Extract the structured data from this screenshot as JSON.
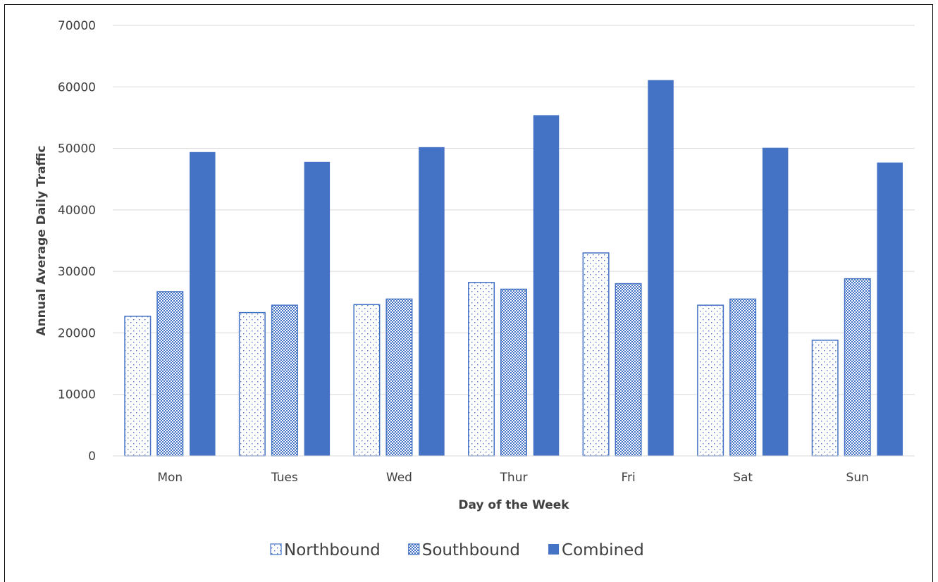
{
  "chart_data": {
    "type": "bar",
    "categories": [
      "Mon",
      "Tues",
      "Wed",
      "Thur",
      "Fri",
      "Sat",
      "Sun"
    ],
    "series": [
      {
        "name": "Northbound",
        "values": [
          22700,
          23300,
          24600,
          28200,
          33000,
          24500,
          18800
        ],
        "color": "#4472C4",
        "fill": "dots"
      },
      {
        "name": "Southbound",
        "values": [
          26700,
          24500,
          25500,
          27100,
          28000,
          25500,
          28800
        ],
        "color": "#4472C4",
        "fill": "checker"
      },
      {
        "name": "Combined",
        "values": [
          49400,
          47800,
          50200,
          55400,
          61100,
          50100,
          47700
        ],
        "color": "#4472C4",
        "fill": "solid"
      }
    ],
    "xlabel": "Day of the Week",
    "ylabel": "Annual Average Daily Traffic",
    "ylim": [
      0,
      70000
    ],
    "yticks": [
      "0",
      "10000",
      "20000",
      "30000",
      "40000",
      "50000",
      "60000",
      "70000"
    ],
    "grid": true,
    "legend_position": "bottom"
  }
}
